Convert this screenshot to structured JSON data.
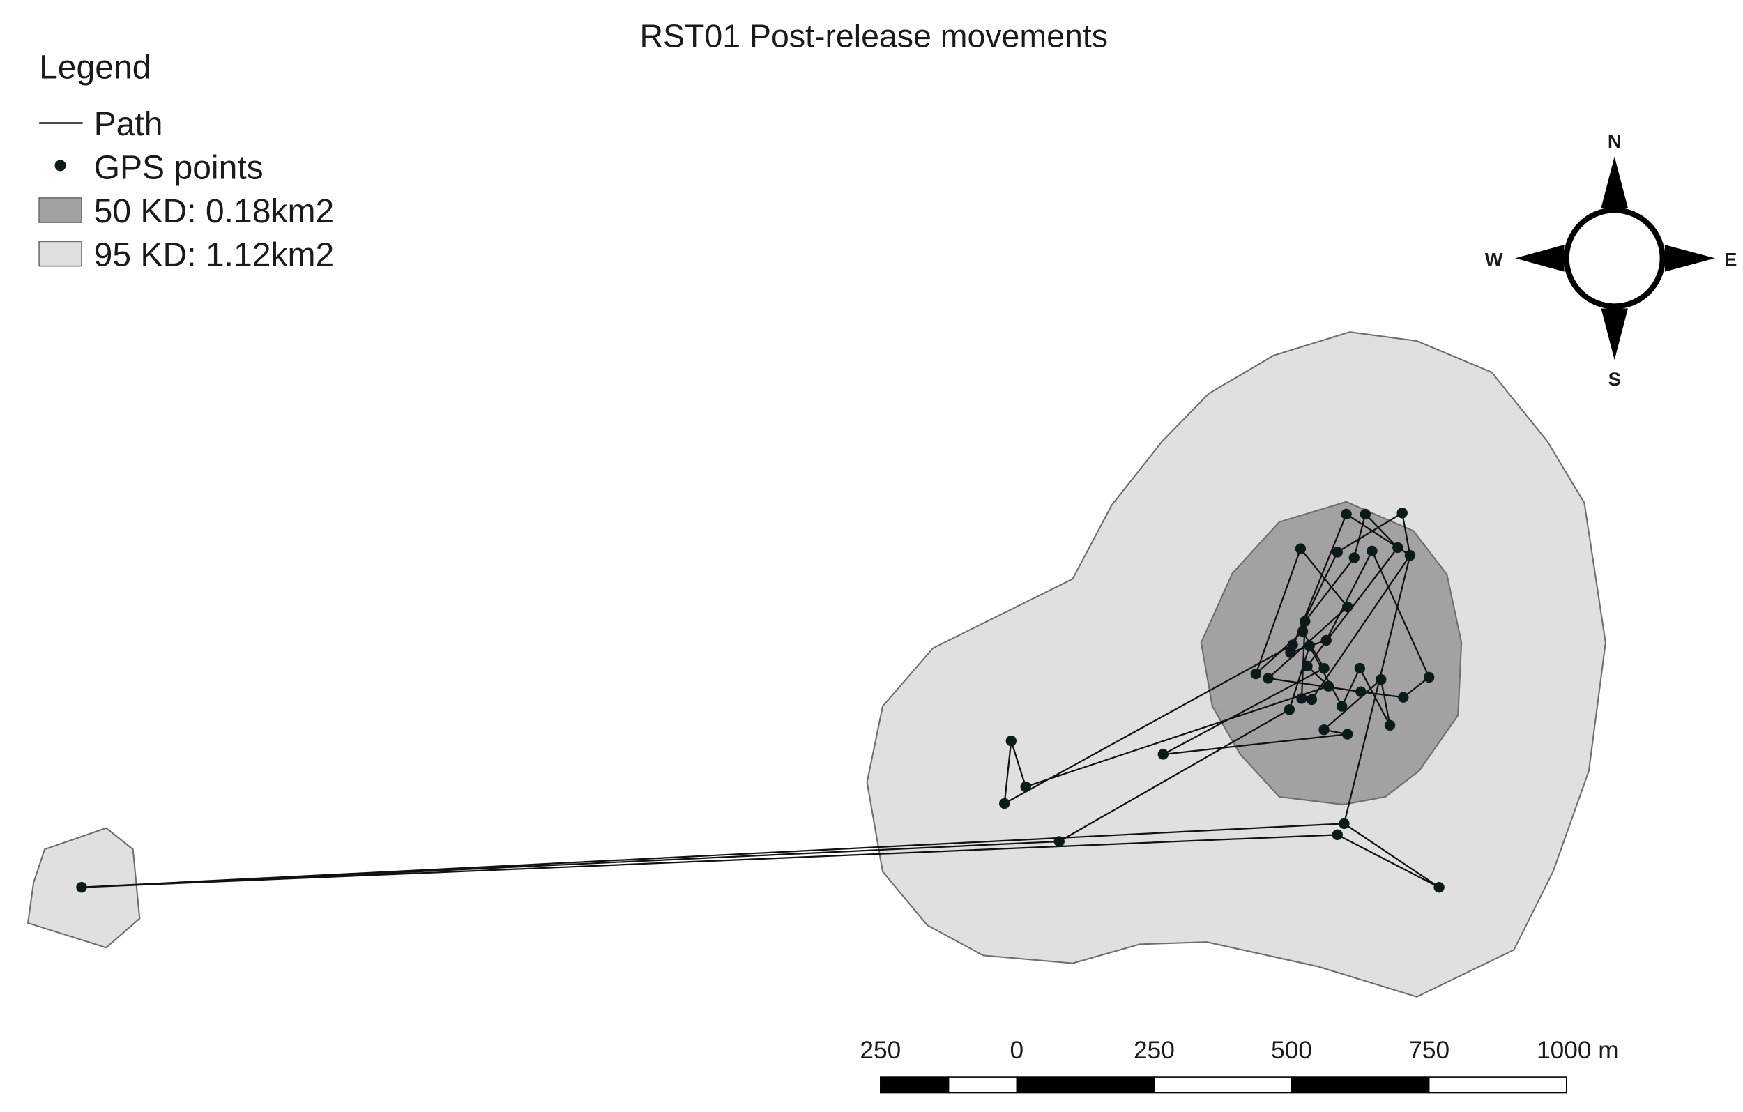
{
  "title": "RST01 Post-release movements",
  "legend": {
    "heading": "Legend",
    "items": [
      {
        "label": "Path",
        "symbol": "line"
      },
      {
        "label": "GPS points",
        "symbol": "point"
      },
      {
        "label": "50 KD: 0.18km2",
        "symbol": "fill",
        "color": "#a2a2a2"
      },
      {
        "label": "95 KD: 1.12km2",
        "symbol": "fill",
        "color": "#dfe0df"
      }
    ]
  },
  "compass": {
    "n": "N",
    "e": "E",
    "s": "S",
    "w": "W"
  },
  "scale_bar": {
    "labels": [
      "250",
      "0",
      "250",
      "500",
      "750",
      "1000 m"
    ]
  },
  "colors": {
    "kd50": "#a2a2a2",
    "kd95": "#dfe0df",
    "point": "#0e1a1a",
    "outline": "#6e6e6e"
  }
}
